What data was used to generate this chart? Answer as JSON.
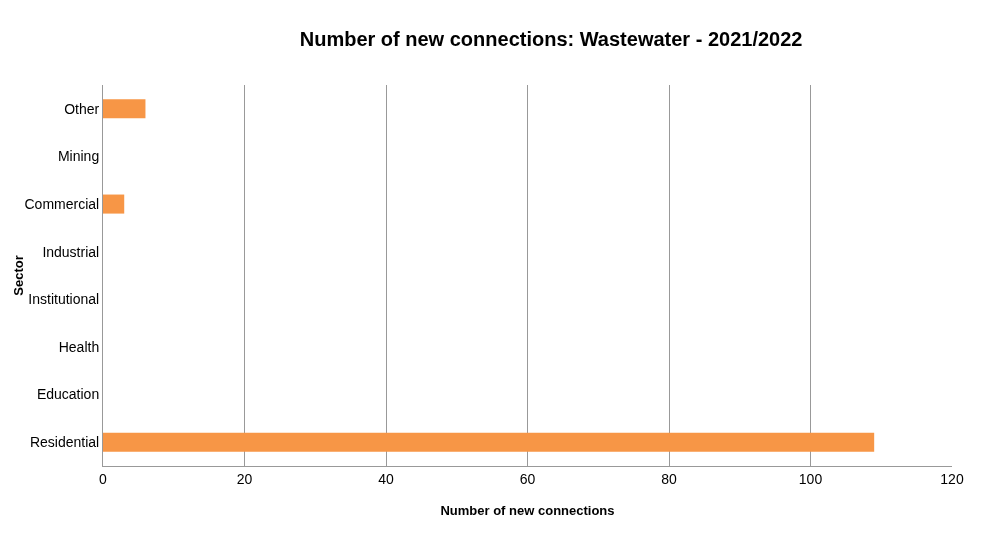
{
  "chart_data": {
    "type": "bar",
    "orientation": "horizontal",
    "title": "Number of new connections: Wastewater - 2021/2022",
    "xlabel": "Number of new connections",
    "ylabel": "Sector",
    "categories": [
      "Other",
      "Mining",
      "Commercial",
      "Industrial",
      "Institutional",
      "Health",
      "Education",
      "Residential"
    ],
    "values": [
      6,
      0,
      3,
      0,
      0,
      0,
      0,
      109
    ],
    "color": "#f79646",
    "xlim": [
      0,
      120
    ],
    "xticks": [
      0,
      20,
      40,
      60,
      80,
      100,
      120
    ],
    "grid": "x"
  }
}
